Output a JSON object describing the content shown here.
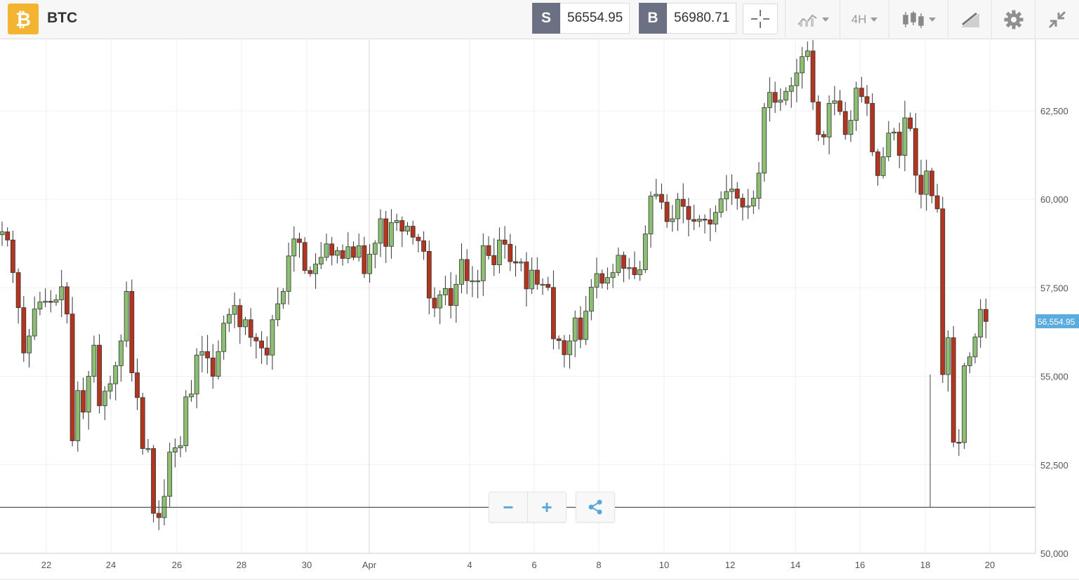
{
  "instrument": {
    "symbol": "BTC",
    "icon": "bitcoin-icon",
    "icon_color": "#f3b431"
  },
  "quotes": {
    "sell": {
      "tag": "S",
      "value": "56554.95"
    },
    "buy": {
      "tag": "B",
      "value": "56980.71"
    }
  },
  "toolbar": {
    "crosshair_icon": "crosshair-icon",
    "chart_type_icon": "chart-type-icon",
    "timeframe_label": "4H",
    "candle_icon": "candlestick-icon",
    "drawing_icon": "drawing-tools-icon",
    "settings_icon": "gear-icon",
    "collapse_icon": "collapse-icon"
  },
  "zoom_controls": {
    "zoom_out": "−",
    "zoom_in": "+",
    "share_icon": "share-icon"
  },
  "colors": {
    "up": "#8dbf73",
    "down": "#b3341f",
    "price_tag": "#5aacdf"
  },
  "chart_data": {
    "type": "candlestick",
    "timeframe": "4H",
    "y_ticks": [
      "62,500",
      "60,000",
      "57,500",
      "55,000",
      "52,500",
      "50,000"
    ],
    "y_tick_values": [
      62500,
      60000,
      57500,
      55000,
      52500,
      50000
    ],
    "x_ticks": [
      "22",
      "24",
      "26",
      "28",
      "30",
      "Apr",
      "4",
      "6",
      "8",
      "10",
      "12",
      "14",
      "16",
      "18",
      "20"
    ],
    "ylim": [
      50000,
      64500
    ],
    "current_price_label": "56,554.95",
    "current_price": 56554.95,
    "horizontal_line": 51300,
    "grid": true,
    "closes": [
      59080,
      58850,
      57930,
      56940,
      55660,
      56140,
      56900,
      57100,
      57120,
      57090,
      57160,
      57530,
      56760,
      53180,
      54600,
      53990,
      55000,
      55880,
      54170,
      54580,
      54790,
      55300,
      56000,
      57400,
      55100,
      54400,
      52960,
      52960,
      51130,
      51010,
      51610,
      52860,
      52980,
      53040,
      54420,
      54500,
      55600,
      55700,
      55520,
      55000,
      55700,
      56500,
      56750,
      57000,
      56400,
      56600,
      56100,
      56000,
      55800,
      55600,
      56600,
      57050,
      57400,
      58400,
      58880,
      58780,
      57990,
      57900,
      58170,
      58360,
      58740,
      58420,
      58550,
      58330,
      58660,
      58360,
      58690,
      57900,
      58450,
      58760,
      59450,
      58670,
      59340,
      59400,
      59100,
      59240,
      58930,
      58830,
      58530,
      57210,
      56930,
      57300,
      57480,
      57000,
      57600,
      58300,
      57700,
      57700,
      57700,
      58690,
      58410,
      58150,
      58850,
      58730,
      58240,
      58200,
      58230,
      57470,
      58000,
      57600,
      57600,
      57510,
      56060,
      56010,
      55610,
      56000,
      56650,
      56040,
      56840,
      57520,
      57900,
      57630,
      57790,
      57930,
      58420,
      58050,
      58070,
      57870,
      58010,
      59020,
      60090,
      60140,
      59920,
      59370,
      59450,
      60000,
      59800,
      59430,
      59380,
      59440,
      59420,
      59300,
      59630,
      60010,
      60220,
      60290,
      60030,
      59780,
      59810,
      60030,
      60740,
      62590,
      63020,
      62740,
      62800,
      63050,
      63210,
      63570,
      64030,
      64190,
      62750,
      61830,
      61760,
      62710,
      62780,
      62480,
      61830,
      62230,
      63140,
      62900,
      62710,
      61340,
      60670,
      61200,
      61870,
      61900,
      61240,
      62300,
      62000,
      60680,
      60140,
      60800,
      60100,
      59730,
      55050,
      56090,
      53140,
      53130,
      55300,
      55550,
      56110,
      56890,
      56550
    ],
    "opens": [
      59000,
      59080,
      58850,
      57930,
      56940,
      55660,
      56140,
      56900,
      57100,
      57120,
      57090,
      57160,
      57530,
      56760,
      53180,
      54600,
      53990,
      55000,
      55880,
      54170,
      54580,
      54790,
      55300,
      56000,
      57400,
      55100,
      54400,
      52960,
      52960,
      51130,
      51010,
      51610,
      52860,
      52980,
      53040,
      54420,
      54500,
      55600,
      55700,
      55520,
      55000,
      55700,
      56500,
      56750,
      57000,
      56400,
      56600,
      56100,
      56000,
      55800,
      55600,
      56600,
      57050,
      57400,
      58400,
      58880,
      58780,
      57990,
      57900,
      58170,
      58360,
      58740,
      58420,
      58550,
      58330,
      58660,
      58360,
      58690,
      57900,
      58450,
      58760,
      59450,
      58670,
      59340,
      59400,
      59100,
      59240,
      58930,
      58830,
      58530,
      57210,
      56930,
      57300,
      57480,
      57000,
      57600,
      58300,
      57700,
      57700,
      57700,
      58690,
      58410,
      58150,
      58850,
      58730,
      58240,
      58200,
      58230,
      57470,
      58000,
      57600,
      57600,
      57510,
      56060,
      56010,
      55610,
      56000,
      56650,
      56040,
      56840,
      57520,
      57900,
      57630,
      57790,
      57930,
      58420,
      58050,
      58070,
      57870,
      58010,
      59020,
      60090,
      60140,
      59920,
      59370,
      59450,
      60000,
      59800,
      59430,
      59380,
      59440,
      59420,
      59300,
      59630,
      60010,
      60220,
      60290,
      60030,
      59780,
      59810,
      60030,
      60740,
      62590,
      63020,
      62740,
      62800,
      63050,
      63210,
      63570,
      64030,
      64190,
      62750,
      61830,
      61760,
      62710,
      62780,
      62480,
      61830,
      62230,
      63140,
      62900,
      62710,
      61340,
      60670,
      61200,
      61870,
      61900,
      61240,
      62300,
      62000,
      60680,
      60140,
      60800,
      60100,
      59730,
      55050,
      56090,
      53140,
      53130,
      55300,
      55550,
      56110,
      56890
    ]
  }
}
